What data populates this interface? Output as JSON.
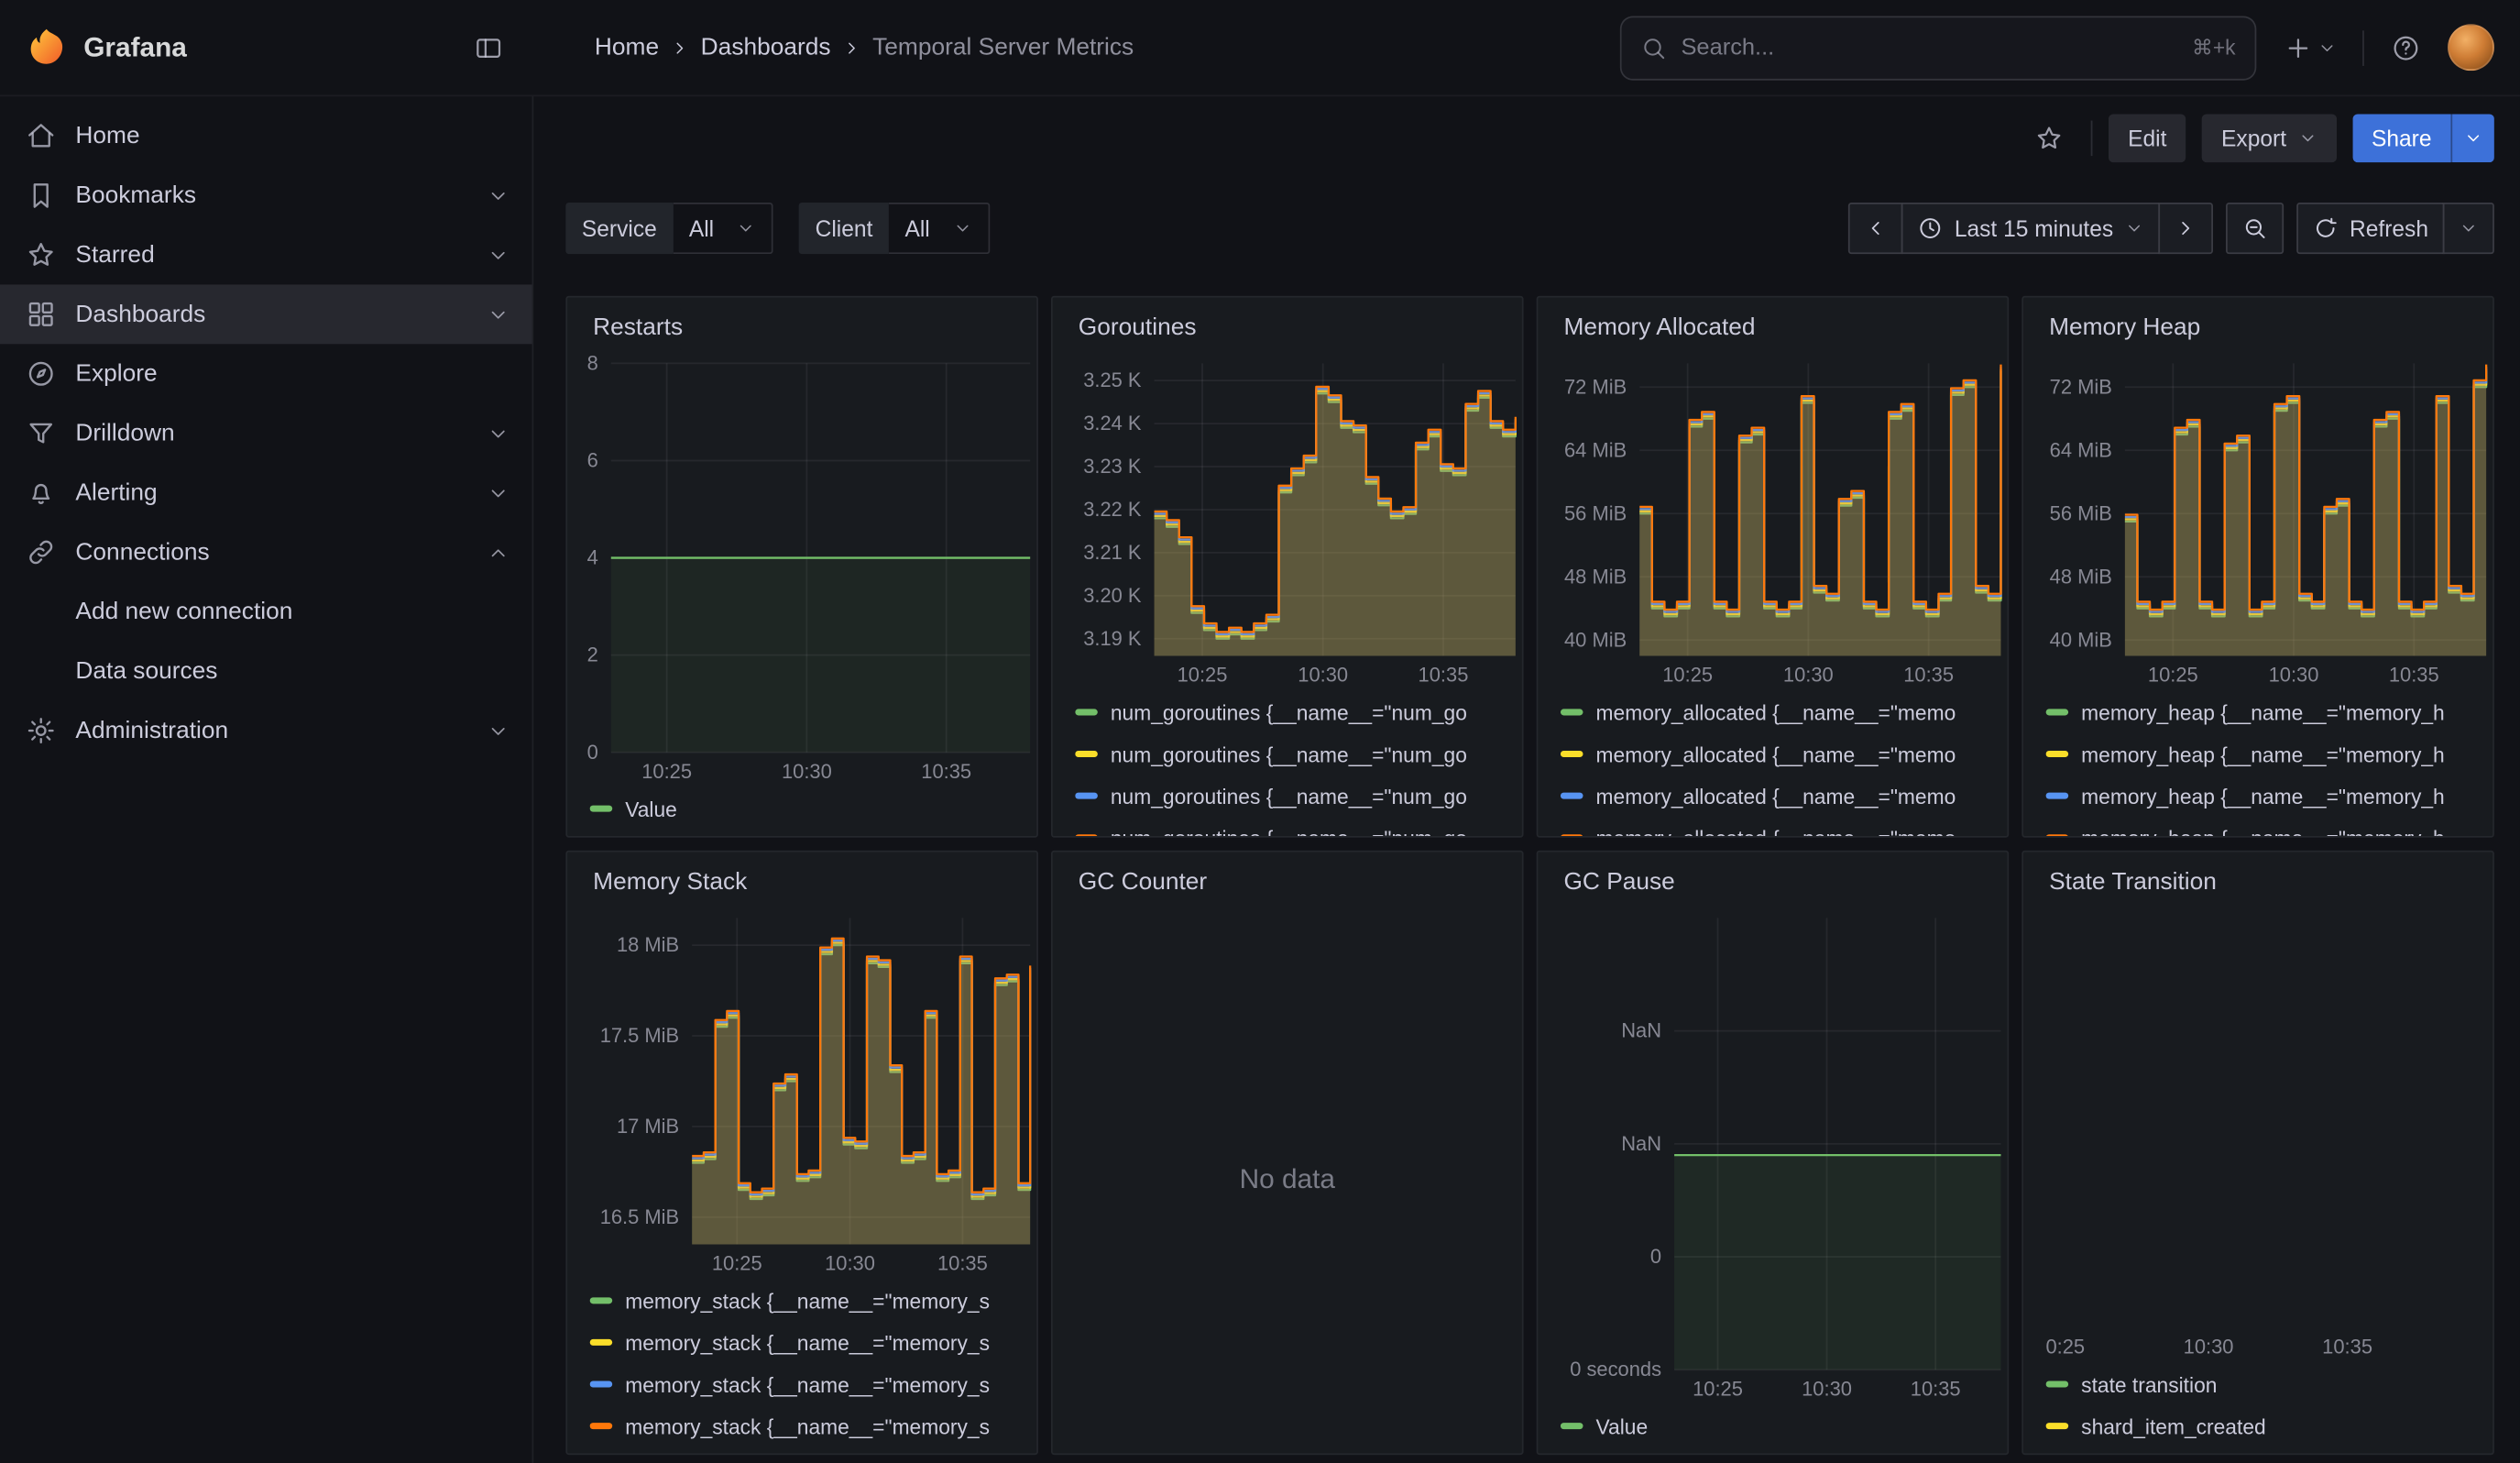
{
  "colors": {
    "green": "#73bf69",
    "yellow": "#fade2a",
    "blue": "#5794f2",
    "orange": "#ff780a",
    "accent_blue": "#3d71d9"
  },
  "topnav": {
    "brand": "Grafana",
    "breadcrumb": [
      {
        "label": "Home",
        "current": false
      },
      {
        "label": "Dashboards",
        "current": false
      },
      {
        "label": "Temporal Server Metrics",
        "current": true
      }
    ],
    "search": {
      "placeholder": "Search...",
      "shortcut": "⌘+k"
    }
  },
  "dashboard_toolbar": {
    "edit_label": "Edit",
    "export_label": "Export",
    "share_label": "Share"
  },
  "sidebar": {
    "items": [
      {
        "label": "Home",
        "icon": "home"
      },
      {
        "label": "Bookmarks",
        "icon": "bookmark",
        "chevron": "down"
      },
      {
        "label": "Starred",
        "icon": "star",
        "chevron": "down"
      },
      {
        "label": "Dashboards",
        "icon": "apps",
        "chevron": "down",
        "active": true
      },
      {
        "label": "Explore",
        "icon": "compass"
      },
      {
        "label": "Drilldown",
        "icon": "drilldown",
        "chevron": "down"
      },
      {
        "label": "Alerting",
        "icon": "bell",
        "chevron": "down"
      },
      {
        "label": "Connections",
        "icon": "link",
        "chevron": "up"
      },
      {
        "label": "Add new connection",
        "indent": true
      },
      {
        "label": "Data sources",
        "indent": true
      },
      {
        "label": "Administration",
        "icon": "gear",
        "chevron": "down"
      }
    ]
  },
  "controls": {
    "variables": [
      {
        "name": "Service",
        "value": "All"
      },
      {
        "name": "Client",
        "value": "All"
      }
    ],
    "time_range_label": "Last 15 minutes",
    "refresh_label": "Refresh"
  },
  "panels": [
    {
      "title": "Restarts",
      "legend": [
        {
          "label": "Value",
          "color": "#73bf69"
        }
      ],
      "chart_data": {
        "type": "line",
        "title": "Restarts",
        "ylim": [
          0,
          8
        ],
        "yticks": [
          {
            "v": 8,
            "label": "8"
          },
          {
            "v": 6,
            "label": "6"
          },
          {
            "v": 4,
            "label": "4"
          },
          {
            "v": 2,
            "label": "2"
          },
          {
            "v": 0,
            "label": "0"
          }
        ],
        "xticks": [
          {
            "f": 0.133,
            "label": "10:25"
          },
          {
            "f": 0.467,
            "label": "10:30"
          },
          {
            "f": 0.8,
            "label": "10:35"
          }
        ],
        "series": [
          {
            "name": "Value",
            "color": "#73bf69",
            "values": [
              4,
              4
            ],
            "fill_opacity": 0.07
          }
        ]
      }
    },
    {
      "title": "Goroutines",
      "legend": [
        {
          "label": "num_goroutines {__name__=\"num_go",
          "color": "#73bf69"
        },
        {
          "label": "num_goroutines {__name__=\"num_go",
          "color": "#fade2a"
        },
        {
          "label": "num_goroutines {__name__=\"num_go",
          "color": "#5794f2"
        },
        {
          "label": "num_goroutines {__name__=\"num_go",
          "color": "#ff780a",
          "partial": true
        }
      ],
      "chart_data": {
        "type": "step-area",
        "title": "Goroutines",
        "ylim": [
          3.186,
          3.254
        ],
        "yticks": [
          {
            "v": 3.25,
            "label": "3.25 K"
          },
          {
            "v": 3.24,
            "label": "3.24 K"
          },
          {
            "v": 3.23,
            "label": "3.23 K"
          },
          {
            "v": 3.22,
            "label": "3.22 K"
          },
          {
            "v": 3.21,
            "label": "3.21 K"
          },
          {
            "v": 3.2,
            "label": "3.20 K"
          },
          {
            "v": 3.19,
            "label": "3.19 K"
          }
        ],
        "xticks": [
          {
            "f": 0.133,
            "label": "10:25"
          },
          {
            "f": 0.467,
            "label": "10:30"
          },
          {
            "f": 0.8,
            "label": "10:35"
          }
        ],
        "values": [
          3.218,
          3.216,
          3.212,
          3.196,
          3.192,
          3.19,
          3.191,
          3.19,
          3.192,
          3.194,
          3.224,
          3.228,
          3.231,
          3.247,
          3.245,
          3.239,
          3.238,
          3.226,
          3.221,
          3.218,
          3.219,
          3.234,
          3.237,
          3.229,
          3.228,
          3.243,
          3.246,
          3.239,
          3.237,
          3.24
        ],
        "fill_opacity": 0.14,
        "series": [
          {
            "name": "num_goroutines",
            "color": "#73bf69"
          },
          {
            "name": "num_goroutines",
            "color": "#fade2a"
          },
          {
            "name": "num_goroutines",
            "color": "#5794f2"
          },
          {
            "name": "num_goroutines",
            "color": "#ff780a"
          }
        ]
      }
    },
    {
      "title": "Memory Allocated",
      "legend": [
        {
          "label": "memory_allocated {__name__=\"memo",
          "color": "#73bf69"
        },
        {
          "label": "memory_allocated {__name__=\"memo",
          "color": "#fade2a"
        },
        {
          "label": "memory_allocated {__name__=\"memo",
          "color": "#5794f2"
        },
        {
          "label": "memory_allocated {__name__=\"memo",
          "color": "#ff780a",
          "partial": true
        }
      ],
      "chart_data": {
        "type": "step-area",
        "title": "Memory Allocated",
        "ylim": [
          38,
          75
        ],
        "yticks": [
          {
            "v": 72,
            "label": "72 MiB"
          },
          {
            "v": 64,
            "label": "64 MiB"
          },
          {
            "v": 56,
            "label": "56 MiB"
          },
          {
            "v": 48,
            "label": "48 MiB"
          },
          {
            "v": 40,
            "label": "40 MiB"
          }
        ],
        "xticks": [
          {
            "f": 0.133,
            "label": "10:25"
          },
          {
            "f": 0.467,
            "label": "10:30"
          },
          {
            "f": 0.8,
            "label": "10:35"
          }
        ],
        "values": [
          56,
          44,
          43,
          44,
          67,
          68,
          44,
          43,
          65,
          66,
          44,
          43,
          44,
          70,
          46,
          45,
          57,
          58,
          44,
          43,
          68,
          69,
          44,
          43,
          45,
          71,
          72,
          46,
          45,
          74
        ],
        "fill_opacity": 0.14,
        "series": [
          {
            "name": "memory_allocated",
            "color": "#73bf69"
          },
          {
            "name": "memory_allocated",
            "color": "#fade2a"
          },
          {
            "name": "memory_allocated",
            "color": "#5794f2"
          },
          {
            "name": "memory_allocated",
            "color": "#ff780a"
          }
        ]
      }
    },
    {
      "title": "Memory Heap",
      "legend": [
        {
          "label": "memory_heap {__name__=\"memory_h",
          "color": "#73bf69"
        },
        {
          "label": "memory_heap {__name__=\"memory_h",
          "color": "#fade2a"
        },
        {
          "label": "memory_heap {__name__=\"memory_h",
          "color": "#5794f2"
        },
        {
          "label": "memory_heap {__name__=\"memory_h",
          "color": "#ff780a",
          "partial": true
        }
      ],
      "chart_data": {
        "type": "step-area",
        "title": "Memory Heap",
        "ylim": [
          38,
          75
        ],
        "yticks": [
          {
            "v": 72,
            "label": "72 MiB"
          },
          {
            "v": 64,
            "label": "64 MiB"
          },
          {
            "v": 56,
            "label": "56 MiB"
          },
          {
            "v": 48,
            "label": "48 MiB"
          },
          {
            "v": 40,
            "label": "40 MiB"
          }
        ],
        "xticks": [
          {
            "f": 0.133,
            "label": "10:25"
          },
          {
            "f": 0.467,
            "label": "10:30"
          },
          {
            "f": 0.8,
            "label": "10:35"
          }
        ],
        "values": [
          55,
          44,
          43,
          44,
          66,
          67,
          44,
          43,
          64,
          65,
          43,
          44,
          69,
          70,
          45,
          44,
          56,
          57,
          44,
          43,
          67,
          68,
          44,
          43,
          44,
          70,
          46,
          45,
          72,
          74
        ],
        "fill_opacity": 0.14,
        "series": [
          {
            "name": "memory_heap",
            "color": "#73bf69"
          },
          {
            "name": "memory_heap",
            "color": "#fade2a"
          },
          {
            "name": "memory_heap",
            "color": "#5794f2"
          },
          {
            "name": "memory_heap",
            "color": "#ff780a"
          }
        ]
      }
    },
    {
      "title": "Memory Stack",
      "legend": [
        {
          "label": "memory_stack {__name__=\"memory_s",
          "color": "#73bf69"
        },
        {
          "label": "memory_stack {__name__=\"memory_s",
          "color": "#fade2a"
        },
        {
          "label": "memory_stack {__name__=\"memory_s",
          "color": "#5794f2"
        },
        {
          "label": "memory_stack {__name__=\"memory_s",
          "color": "#ff780a"
        }
      ],
      "chart_data": {
        "type": "step-area",
        "title": "Memory Stack",
        "ylim": [
          16.35,
          18.15
        ],
        "yticks": [
          {
            "v": 18,
            "label": "18 MiB"
          },
          {
            "v": 17.5,
            "label": "17.5 MiB"
          },
          {
            "v": 17,
            "label": "17 MiB"
          },
          {
            "v": 16.5,
            "label": "16.5 MiB"
          }
        ],
        "xticks": [
          {
            "f": 0.133,
            "label": "10:25"
          },
          {
            "f": 0.467,
            "label": "10:30"
          },
          {
            "f": 0.8,
            "label": "10:35"
          }
        ],
        "values": [
          16.8,
          16.82,
          17.55,
          17.6,
          16.65,
          16.6,
          16.62,
          17.2,
          17.25,
          16.7,
          16.72,
          17.95,
          18.0,
          16.9,
          16.88,
          17.9,
          17.88,
          17.3,
          16.8,
          16.82,
          17.6,
          16.7,
          16.72,
          17.9,
          16.6,
          16.62,
          17.78,
          17.8,
          16.65,
          17.85
        ],
        "fill_opacity": 0.14,
        "series": [
          {
            "name": "memory_stack",
            "color": "#73bf69"
          },
          {
            "name": "memory_stack",
            "color": "#fade2a"
          },
          {
            "name": "memory_stack",
            "color": "#5794f2"
          },
          {
            "name": "memory_stack",
            "color": "#ff780a"
          }
        ]
      }
    },
    {
      "title": "GC Counter",
      "no_data_text": "No data"
    },
    {
      "title": "GC Pause",
      "legend": [
        {
          "label": "Value",
          "color": "#73bf69"
        }
      ],
      "chart_data": {
        "type": "line",
        "title": "GC Pause",
        "ylim": [
          0,
          4
        ],
        "yticks": [
          {
            "v": 3,
            "label": "NaN"
          },
          {
            "v": 2,
            "label": "NaN"
          },
          {
            "v": 1,
            "label": "0"
          },
          {
            "v": 0,
            "label": "0 seconds"
          }
        ],
        "xticks": [
          {
            "f": 0.133,
            "label": "10:25"
          },
          {
            "f": 0.467,
            "label": "10:30"
          },
          {
            "f": 0.8,
            "label": "10:35"
          }
        ],
        "series": [
          {
            "name": "Value",
            "color": "#73bf69",
            "values": [
              1.9,
              1.9
            ],
            "fill_opacity": 0.09
          }
        ]
      }
    },
    {
      "title": "State Transition",
      "legend": [
        {
          "label": "state transition",
          "color": "#73bf69"
        },
        {
          "label": "shard_item_created",
          "color": "#fade2a"
        }
      ],
      "chart_data": {
        "type": "empty",
        "title": "State Transition",
        "xticks": [
          {
            "f": 0.03,
            "label": "0:25"
          },
          {
            "f": 0.36,
            "label": "10:30"
          },
          {
            "f": 0.68,
            "label": "10:35"
          }
        ],
        "series": []
      }
    }
  ]
}
